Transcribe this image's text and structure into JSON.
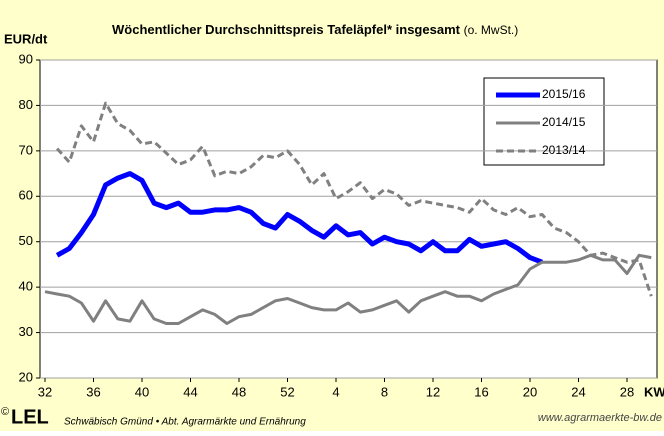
{
  "chart_data": {
    "type": "line",
    "title": "Wöchentlicher Durchschnittspreis  Tafeläpfel* insgesamt",
    "subtitle": "(o. MwSt.)",
    "y_label": "EUR/dt",
    "x_label": "KW",
    "annotations": {
      "copyright": "©",
      "logo": "LEL",
      "source": "Schwäbisch Gmünd • Abt. Agrarmärkte und Ernährung",
      "url": "www.agrarmaerkte-bw.de"
    },
    "categories": [
      "32",
      null,
      null,
      null,
      "36",
      null,
      null,
      null,
      "40",
      null,
      null,
      null,
      "44",
      null,
      null,
      null,
      "48",
      null,
      null,
      null,
      "52",
      null,
      null,
      null,
      "4",
      null,
      null,
      null,
      "8",
      null,
      null,
      null,
      "12",
      null,
      null,
      null,
      "16",
      null,
      null,
      null,
      "20",
      null,
      null,
      null,
      "24",
      null,
      null,
      null,
      "28",
      null,
      null
    ],
    "ylim": [
      20,
      90
    ],
    "yticks": [
      20,
      30,
      40,
      50,
      60,
      70,
      80,
      90
    ],
    "grid": true,
    "legend": "upper right",
    "series": [
      {
        "name": "2015/16",
        "color": "#0000ff",
        "width": 5,
        "dash": false,
        "values": [
          null,
          47,
          48.5,
          52,
          56,
          62.5,
          64,
          65,
          63.5,
          58.5,
          57.5,
          58.5,
          56.5,
          56.5,
          57,
          57,
          57.5,
          56.5,
          54,
          53,
          56,
          54.5,
          52.5,
          51,
          53.5,
          51.5,
          52,
          49.5,
          51,
          50,
          49.5,
          48,
          50,
          48,
          48,
          50.5,
          49,
          49.5,
          50,
          48.5,
          46.5,
          45.5,
          null,
          null,
          null,
          null,
          null,
          null,
          null,
          null,
          null
        ]
      },
      {
        "name": "2014/15",
        "color": "#808080",
        "width": 3,
        "dash": false,
        "values": [
          39,
          38.5,
          38,
          36.5,
          32.5,
          37,
          33,
          32.5,
          37,
          33,
          32,
          32,
          33.5,
          35,
          34,
          32,
          33.5,
          34,
          35.5,
          37,
          37.5,
          36.5,
          35.5,
          35,
          35,
          36.5,
          34.5,
          35,
          36,
          37,
          34.5,
          37,
          38,
          39,
          38,
          38,
          37,
          38.5,
          39.5,
          40.5,
          44,
          45.5,
          45.5,
          45.5,
          46,
          47,
          46,
          46,
          43,
          47,
          46.5
        ]
      },
      {
        "name": "2013/14",
        "color": "#808080",
        "width": 3,
        "dash": true,
        "values": [
          null,
          70.5,
          67.5,
          75.5,
          72,
          80.5,
          76,
          74.5,
          71.5,
          72,
          69.5,
          67,
          68,
          71,
          64.5,
          65.5,
          65,
          66.5,
          69,
          68.5,
          70,
          67,
          62.5,
          65,
          59.5,
          61,
          63,
          59.5,
          61.5,
          60.5,
          58,
          59,
          58.5,
          58,
          57.5,
          56.5,
          59.5,
          57,
          56,
          57.5,
          55.5,
          56,
          53,
          52,
          50,
          47,
          47.5,
          46.5,
          45.5,
          46,
          38
        ]
      }
    ]
  }
}
